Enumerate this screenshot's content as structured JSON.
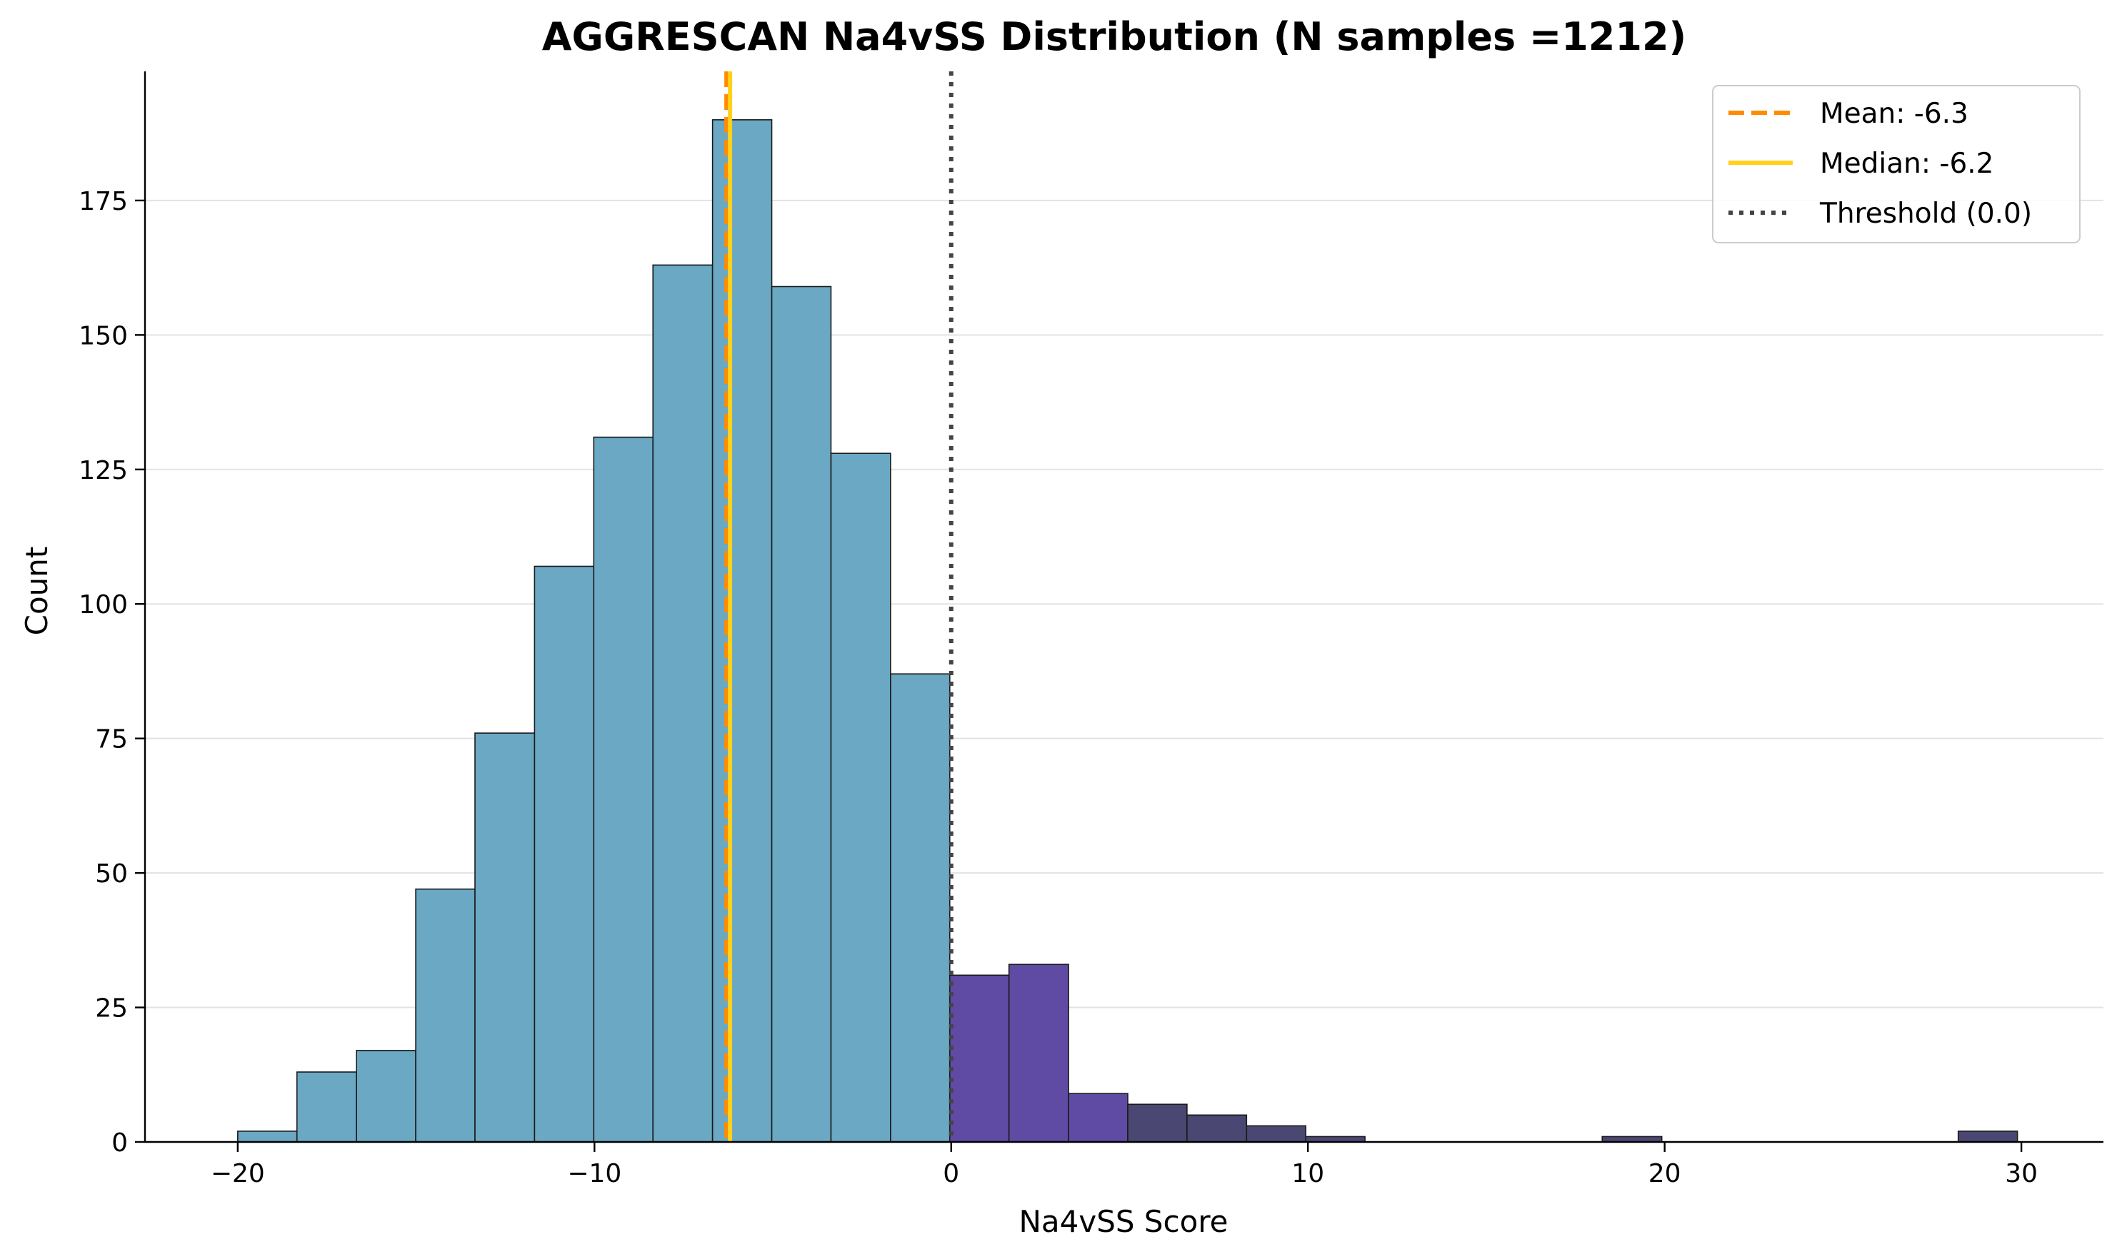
{
  "chart_data": {
    "type": "bar",
    "title": "AGGRESCAN Na4vSS Distribution (N samples =1212)",
    "xlabel": "Na4vSS Score",
    "ylabel": "Count",
    "xlim": [
      -22.6,
      32.3
    ],
    "ylim": [
      0,
      199
    ],
    "x_ticks": [
      -20,
      -10,
      0,
      10,
      20,
      30
    ],
    "x_tick_labels": [
      "−20",
      "−10",
      "0",
      "10",
      "20",
      "30"
    ],
    "y_ticks": [
      0,
      25,
      50,
      75,
      100,
      125,
      150,
      175
    ],
    "y_tick_labels": [
      "0",
      "25",
      "50",
      "75",
      "100",
      "125",
      "150",
      "175"
    ],
    "grid": "horizontal",
    "bins": [
      {
        "x0": -20.0,
        "x1": -18.34,
        "count": 2
      },
      {
        "x0": -18.34,
        "x1": -16.67,
        "count": 13
      },
      {
        "x0": -16.67,
        "x1": -15.01,
        "count": 17
      },
      {
        "x0": -15.01,
        "x1": -13.35,
        "count": 47
      },
      {
        "x0": -13.35,
        "x1": -11.68,
        "count": 76
      },
      {
        "x0": -11.68,
        "x1": -10.02,
        "count": 107
      },
      {
        "x0": -10.02,
        "x1": -8.36,
        "count": 131
      },
      {
        "x0": -8.36,
        "x1": -6.69,
        "count": 163
      },
      {
        "x0": -6.69,
        "x1": -5.03,
        "count": 190
      },
      {
        "x0": -5.03,
        "x1": -3.37,
        "count": 159
      },
      {
        "x0": -3.37,
        "x1": -1.7,
        "count": 128
      },
      {
        "x0": -1.7,
        "x1": -0.04,
        "count": 87
      },
      {
        "x0": -0.04,
        "x1": 1.62,
        "count": 31
      },
      {
        "x0": 1.62,
        "x1": 3.29,
        "count": 33
      },
      {
        "x0": 3.29,
        "x1": 4.95,
        "count": 9
      },
      {
        "x0": 4.95,
        "x1": 6.61,
        "count": 7
      },
      {
        "x0": 6.61,
        "x1": 8.28,
        "count": 5
      },
      {
        "x0": 8.28,
        "x1": 9.94,
        "count": 3
      },
      {
        "x0": 9.94,
        "x1": 11.6,
        "count": 1
      },
      {
        "x0": 18.25,
        "x1": 19.92,
        "count": 1
      },
      {
        "x0": 28.23,
        "x1": 29.89,
        "count": 2
      }
    ],
    "bin_colors": {
      "below_threshold": "#6aa8c4",
      "near_threshold": "#5f4ba3",
      "far_tail": "#4b4773"
    },
    "vlines": [
      {
        "label": "Mean: -6.3",
        "x": -6.3,
        "style": "dashed",
        "color": "#ff8c00"
      },
      {
        "label": "Median: -6.2",
        "x": -6.2,
        "style": "solid",
        "color": "#ffd11a"
      },
      {
        "label": "Threshold (0.0)",
        "x": 0.0,
        "style": "dotted",
        "color": "#444444"
      }
    ],
    "legend_position": "top-right"
  }
}
